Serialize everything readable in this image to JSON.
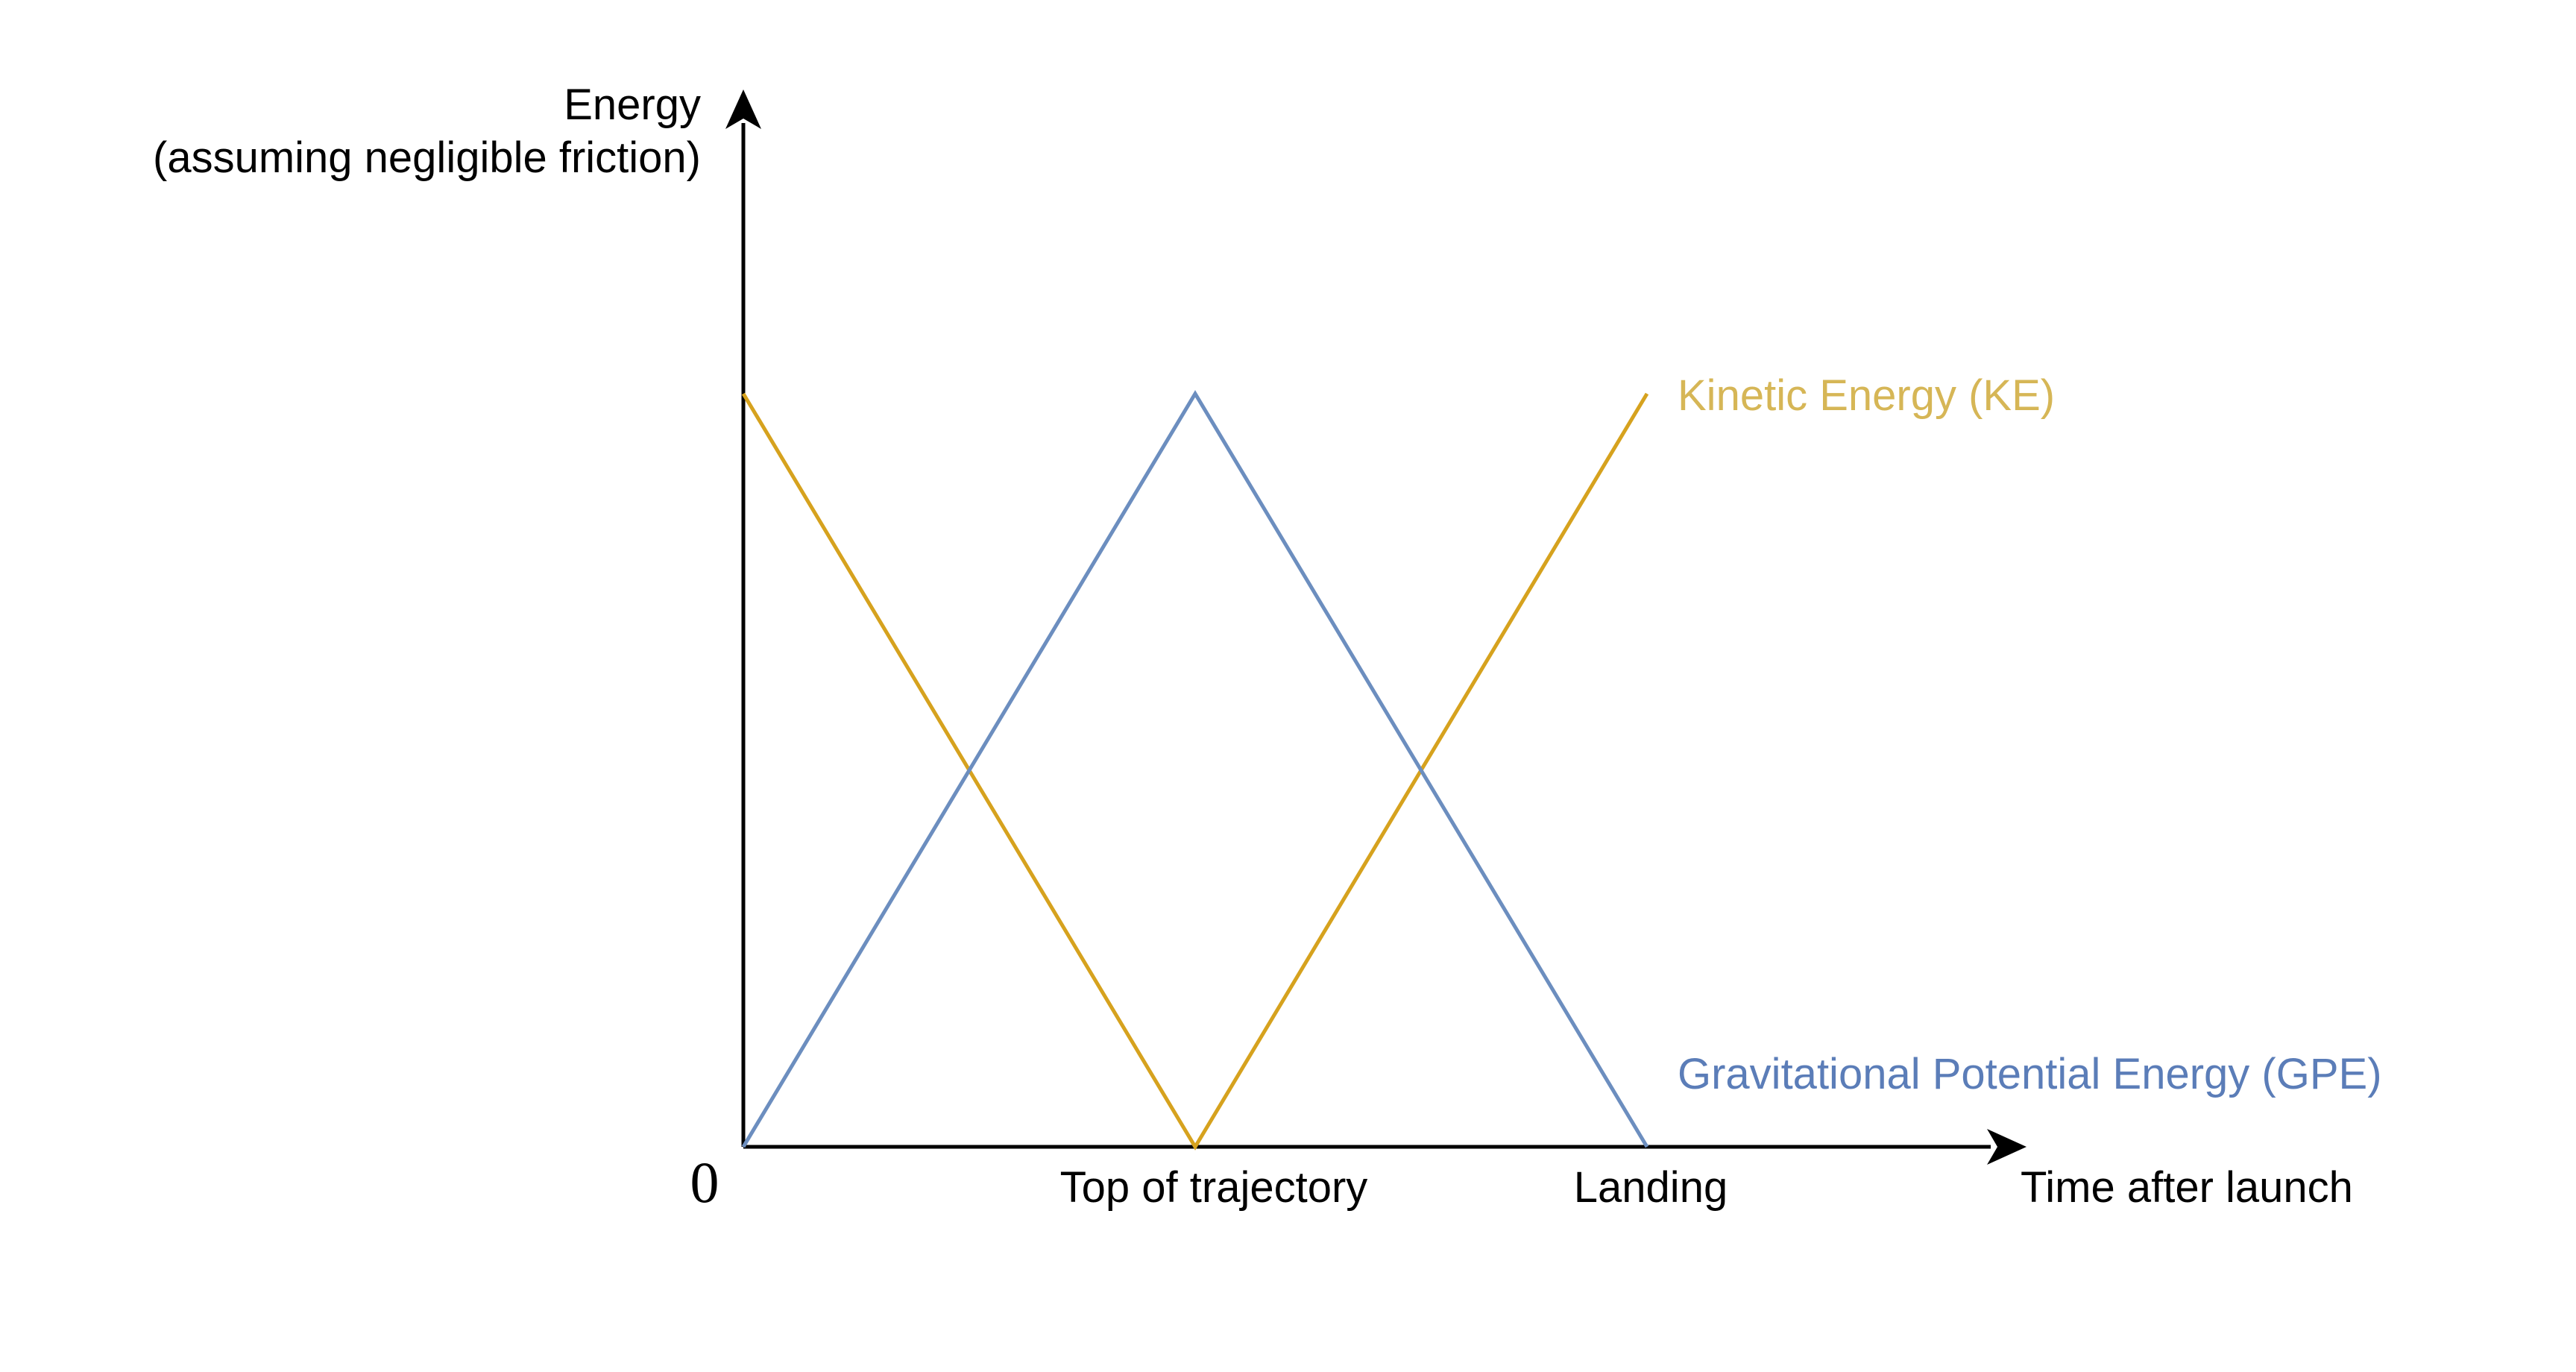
{
  "chart_data": {
    "type": "line",
    "title": "",
    "ylabel": "Energy",
    "ylabel_note": "(assuming negligible friction)",
    "xlabel": "Time after launch",
    "origin_label": "0",
    "x_ticks": [
      {
        "x": 1,
        "label": "Top of trajectory"
      },
      {
        "x": 2,
        "label": "Landing"
      }
    ],
    "xlim": [
      0,
      2.83
    ],
    "ylim": [
      0,
      1.4
    ],
    "grid": false,
    "legend": "inline labels at right end of lines",
    "series": [
      {
        "name": "Kinetic Energy (KE)",
        "color": "#D6A21E",
        "label_color": "#D6B656",
        "points": [
          [
            0,
            1
          ],
          [
            1,
            0
          ],
          [
            2,
            1
          ]
        ]
      },
      {
        "name": "Gravitational Potential Energy (GPE)",
        "color": "#6C8EBF",
        "label_color": "#5B7DB8",
        "points": [
          [
            0,
            0
          ],
          [
            1,
            1
          ],
          [
            2,
            0
          ]
        ]
      }
    ]
  }
}
